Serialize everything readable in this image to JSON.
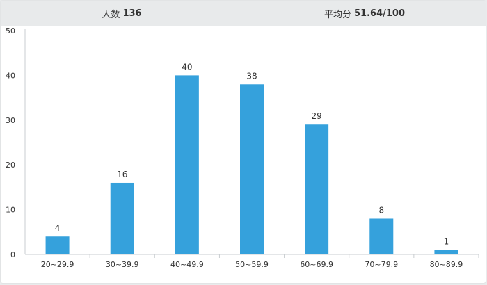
{
  "header": {
    "count_label": "人数",
    "count_value": "136",
    "avg_label": "平均分",
    "avg_value": "51.64/100"
  },
  "colors": {
    "bar": "#35a1dc",
    "axis": "#c9cdd0",
    "text": "#333333"
  },
  "chart_data": {
    "type": "bar",
    "categories": [
      "20~29.9",
      "30~39.9",
      "40~49.9",
      "50~59.9",
      "60~69.9",
      "70~79.9",
      "80~89.9"
    ],
    "values": [
      4,
      16,
      40,
      38,
      29,
      8,
      1
    ],
    "title": "",
    "xlabel": "",
    "ylabel": "",
    "ylim": [
      0,
      50
    ],
    "yticks": [
      0,
      10,
      20,
      30,
      40,
      50
    ],
    "grid": false,
    "data_labels": true
  }
}
